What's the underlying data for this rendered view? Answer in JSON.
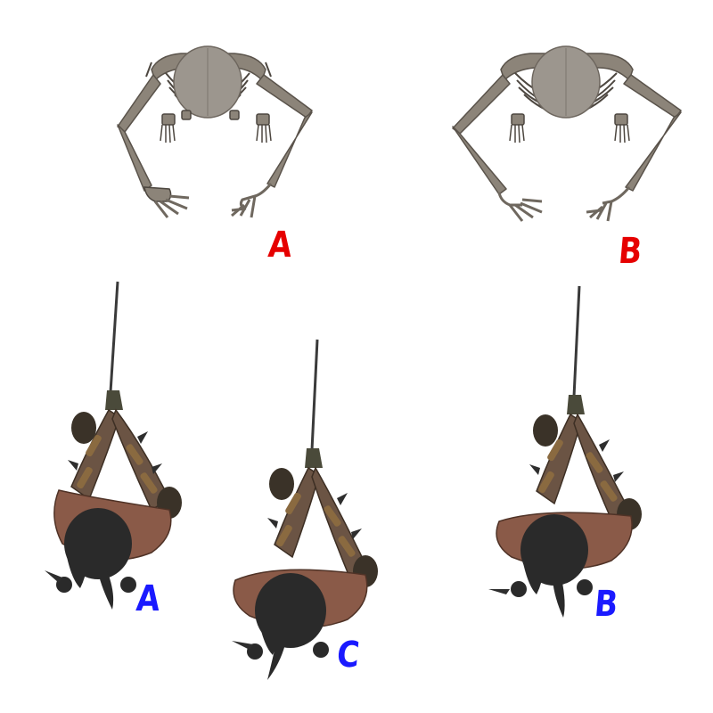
{
  "colors": {
    "red_label": "#e60000",
    "blue_label": "#1a1aff",
    "bone": "#8c8479",
    "bone_dark": "#4d4740",
    "skin": "#8a5a48",
    "hair": "#2a2a2a",
    "leather": "#5a4330",
    "blade": "#3a3a3a"
  },
  "top_row": [
    {
      "figure": "skeleton-pose",
      "label": "A",
      "label_color": "red"
    },
    {
      "figure": "skeleton-pose",
      "label": "B",
      "label_color": "red"
    }
  ],
  "bottom_row": [
    {
      "figure": "warrior-sword-pose",
      "label": "A",
      "label_color": "blue"
    },
    {
      "figure": "warrior-sword-pose",
      "label": "C",
      "label_color": "blue"
    },
    {
      "figure": "warrior-sword-pose",
      "label": "B",
      "label_color": "blue"
    }
  ]
}
